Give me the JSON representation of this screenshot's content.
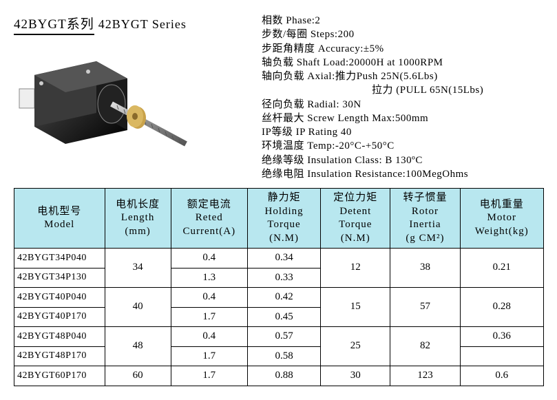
{
  "title_cn": "42BYGT系列",
  "title_en": "42BYGT Series",
  "specs": [
    "相数 Phase:2",
    "步数/每圈 Steps:200",
    "步距角精度 Accuracy:±5%",
    "轴负载 Shaft Load:20000H at 1000RPM",
    "轴向负载 Axial:推力Push 25N(5.6Lbs)",
    "拉力 (PULL 65N(15Lbs)",
    "径向负载 Radial: 30N",
    "丝杆最大 Screw Length Max:500mm",
    "IP等级 IP Rating 40",
    "环境温度 Temp:-20°C-+50°C",
    "绝缘等级 Insulation Class: B 130ºC",
    "绝缘电阻 Insulation Resistance:100MegOhms"
  ],
  "spec_indent_index": 5,
  "table": {
    "header_bg": "#b8e7ef",
    "columns": [
      {
        "cn": "电机型号",
        "en": "Model"
      },
      {
        "cn": "电机长度",
        "en": "Length",
        "unit": "(mm)"
      },
      {
        "cn": "额定电流",
        "en": "Reted",
        "en2": "Current(A)"
      },
      {
        "cn": "静力矩",
        "en": "Holding",
        "en2": "Torque",
        "unit": "(N.M)"
      },
      {
        "cn": "定位力矩",
        "en": "Detent",
        "en2": "Torque",
        "unit": "(N.M)"
      },
      {
        "cn": "转子惯量",
        "en": "Rotor",
        "en2": "Inertia",
        "unit": "(g CM²)"
      },
      {
        "cn": "电机重量",
        "en": "Motor",
        "en2": "Weight(kg)"
      }
    ],
    "rows": [
      {
        "model": "42BYGT34P040",
        "length": "34",
        "current": "0.4",
        "holding": "0.34",
        "detent": "12",
        "inertia": "38",
        "weight": "0.21",
        "len_span": 2,
        "det_span": 2,
        "in_span": 2,
        "wt_span": 2
      },
      {
        "model": "42BYGT34P130",
        "current": "1.3",
        "holding": "0.33"
      },
      {
        "model": "42BYGT40P040",
        "length": "40",
        "current": "0.4",
        "holding": "0.42",
        "detent": "15",
        "inertia": "57",
        "weight": "0.28",
        "len_span": 2,
        "det_span": 2,
        "in_span": 2,
        "wt_span": 2
      },
      {
        "model": "42BYGT40P170",
        "current": "1.7",
        "holding": "0.45"
      },
      {
        "model": "42BYGT48P040",
        "length": "48",
        "current": "0.4",
        "holding": "0.57",
        "detent": "25",
        "inertia": "82",
        "weight": "0.36",
        "len_span": 2,
        "det_span": 2,
        "in_span": 2,
        "wt_span": 1
      },
      {
        "model": "42BYGT48P170",
        "current": "1.7",
        "holding": "0.58",
        "weight": ""
      },
      {
        "model": "42BYGT60P170",
        "length": "60",
        "current": "1.7",
        "holding": "0.88",
        "detent": "30",
        "inertia": "123",
        "weight": "0.6"
      }
    ]
  }
}
